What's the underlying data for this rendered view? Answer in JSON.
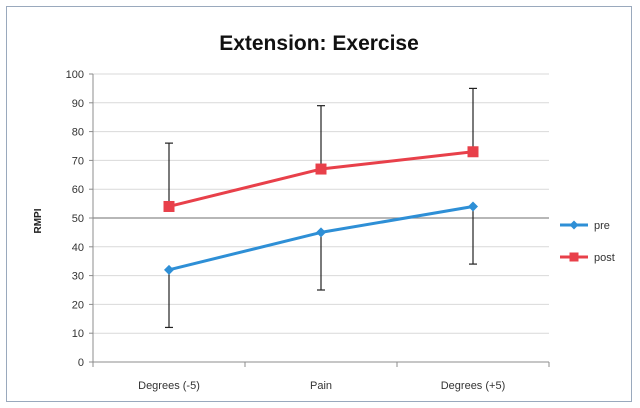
{
  "chart_data": {
    "type": "line",
    "title": "Extension: Exercise",
    "xlabel": "",
    "ylabel": "RMPI",
    "categories": [
      "Degrees (-5)",
      "Pain",
      "Degrees (+5)"
    ],
    "ylim": [
      0,
      100
    ],
    "yticks": [
      0,
      10,
      20,
      30,
      40,
      50,
      60,
      70,
      80,
      90,
      100
    ],
    "grid": true,
    "legend_position": "right",
    "series": [
      {
        "name": "pre",
        "color": "#2e8fd6",
        "marker": "diamond",
        "values": [
          32,
          45,
          54
        ],
        "error_low": [
          12,
          25,
          34
        ]
      },
      {
        "name": "post",
        "color": "#e8404a",
        "marker": "square",
        "values": [
          54,
          67,
          73
        ],
        "error_high": [
          76,
          89,
          95
        ]
      }
    ]
  }
}
